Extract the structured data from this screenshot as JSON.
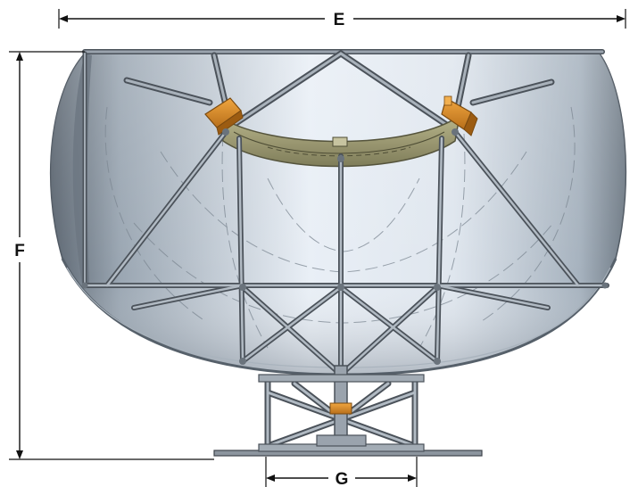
{
  "dimensions": {
    "width_label": "E",
    "height_label": "F",
    "base_label": "G"
  },
  "colors": {
    "dish_light": "#eef2f8",
    "dish_mid": "#c5d0dc",
    "dish_dark": "#7d8894",
    "strut": "#8f98a2",
    "strut_edge": "#4b525a",
    "bracket": "#d98c2a",
    "arc_plate": "#9a9a72",
    "dimension_line": "#111111"
  }
}
